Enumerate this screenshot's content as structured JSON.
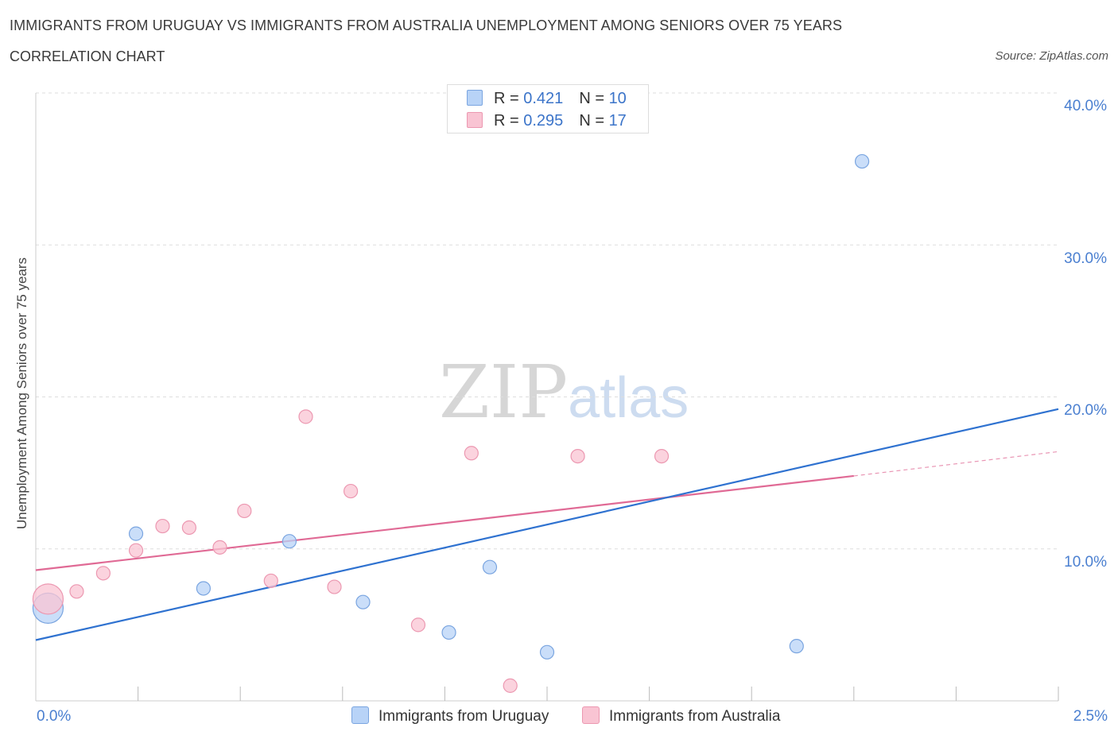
{
  "title": "IMMIGRANTS FROM URUGUAY VS IMMIGRANTS FROM AUSTRALIA UNEMPLOYMENT AMONG SENIORS OVER 75 YEARS",
  "subtitle": "CORRELATION CHART",
  "source": "Source: ZipAtlas.com",
  "watermark": {
    "zip": "ZIP",
    "atlas": "atlas"
  },
  "colors": {
    "uruguay_fill": "#b8d3f7",
    "uruguay_stroke": "#7aa5e0",
    "uruguay_line": "#2f72d0",
    "australia_fill": "#f9c4d3",
    "australia_stroke": "#ec98b1",
    "australia_line": "#e06a95",
    "grid": "#dddddd",
    "axis": "#cccccc",
    "tick_label": "#4a7fd0"
  },
  "legend": {
    "rows": [
      {
        "r_label": "R = ",
        "r_value": "0.421",
        "n_label": "N = ",
        "n_value": "10"
      },
      {
        "r_label": "R = ",
        "r_value": "0.295",
        "n_label": "N = ",
        "n_value": "17"
      }
    ]
  },
  "chart_data": {
    "type": "scatter",
    "title": "IMMIGRANTS FROM URUGUAY VS IMMIGRANTS FROM AUSTRALIA UNEMPLOYMENT AMONG SENIORS OVER 75 YEARS",
    "xlabel": "",
    "ylabel": "Unemployment Among Seniors over 75 years",
    "xlim": [
      0,
      2.5
    ],
    "ylim": [
      0,
      40
    ],
    "x_tick_labels": [
      "0.0%",
      "2.5%"
    ],
    "y_ticks": [
      10,
      20,
      30,
      40
    ],
    "y_tick_labels": [
      "10.0%",
      "20.0%",
      "30.0%",
      "40.0%"
    ],
    "grid": true,
    "legend_position": "top-center",
    "series": [
      {
        "name": "Immigrants from Uruguay",
        "points": [
          {
            "x": 0.03,
            "y": 6.1,
            "size": "large"
          },
          {
            "x": 0.245,
            "y": 11.0
          },
          {
            "x": 0.41,
            "y": 7.4
          },
          {
            "x": 0.62,
            "y": 10.5
          },
          {
            "x": 0.8,
            "y": 6.5
          },
          {
            "x": 1.01,
            "y": 4.5
          },
          {
            "x": 1.11,
            "y": 8.8
          },
          {
            "x": 1.25,
            "y": 3.2
          },
          {
            "x": 1.86,
            "y": 3.6
          },
          {
            "x": 2.02,
            "y": 35.5
          }
        ],
        "trend": {
          "x": [
            0.0,
            2.5
          ],
          "y": [
            4.0,
            19.2
          ]
        }
      },
      {
        "name": "Immigrants from Australia",
        "points": [
          {
            "x": 0.03,
            "y": 6.7,
            "size": "large"
          },
          {
            "x": 0.1,
            "y": 7.2
          },
          {
            "x": 0.165,
            "y": 8.4
          },
          {
            "x": 0.245,
            "y": 9.9
          },
          {
            "x": 0.31,
            "y": 11.5
          },
          {
            "x": 0.375,
            "y": 11.4
          },
          {
            "x": 0.45,
            "y": 10.1
          },
          {
            "x": 0.51,
            "y": 12.5
          },
          {
            "x": 0.575,
            "y": 7.9
          },
          {
            "x": 0.66,
            "y": 18.7
          },
          {
            "x": 0.73,
            "y": 7.5
          },
          {
            "x": 0.77,
            "y": 13.8
          },
          {
            "x": 0.935,
            "y": 5.0
          },
          {
            "x": 1.065,
            "y": 16.3
          },
          {
            "x": 1.16,
            "y": 1.0
          },
          {
            "x": 1.325,
            "y": 16.1
          },
          {
            "x": 1.53,
            "y": 16.1
          }
        ],
        "trend": {
          "x": [
            0.0,
            2.0
          ],
          "y": [
            8.6,
            14.8
          ]
        },
        "trend_extension": {
          "x": [
            2.0,
            2.5
          ],
          "y": [
            14.8,
            16.4
          ]
        }
      }
    ]
  }
}
